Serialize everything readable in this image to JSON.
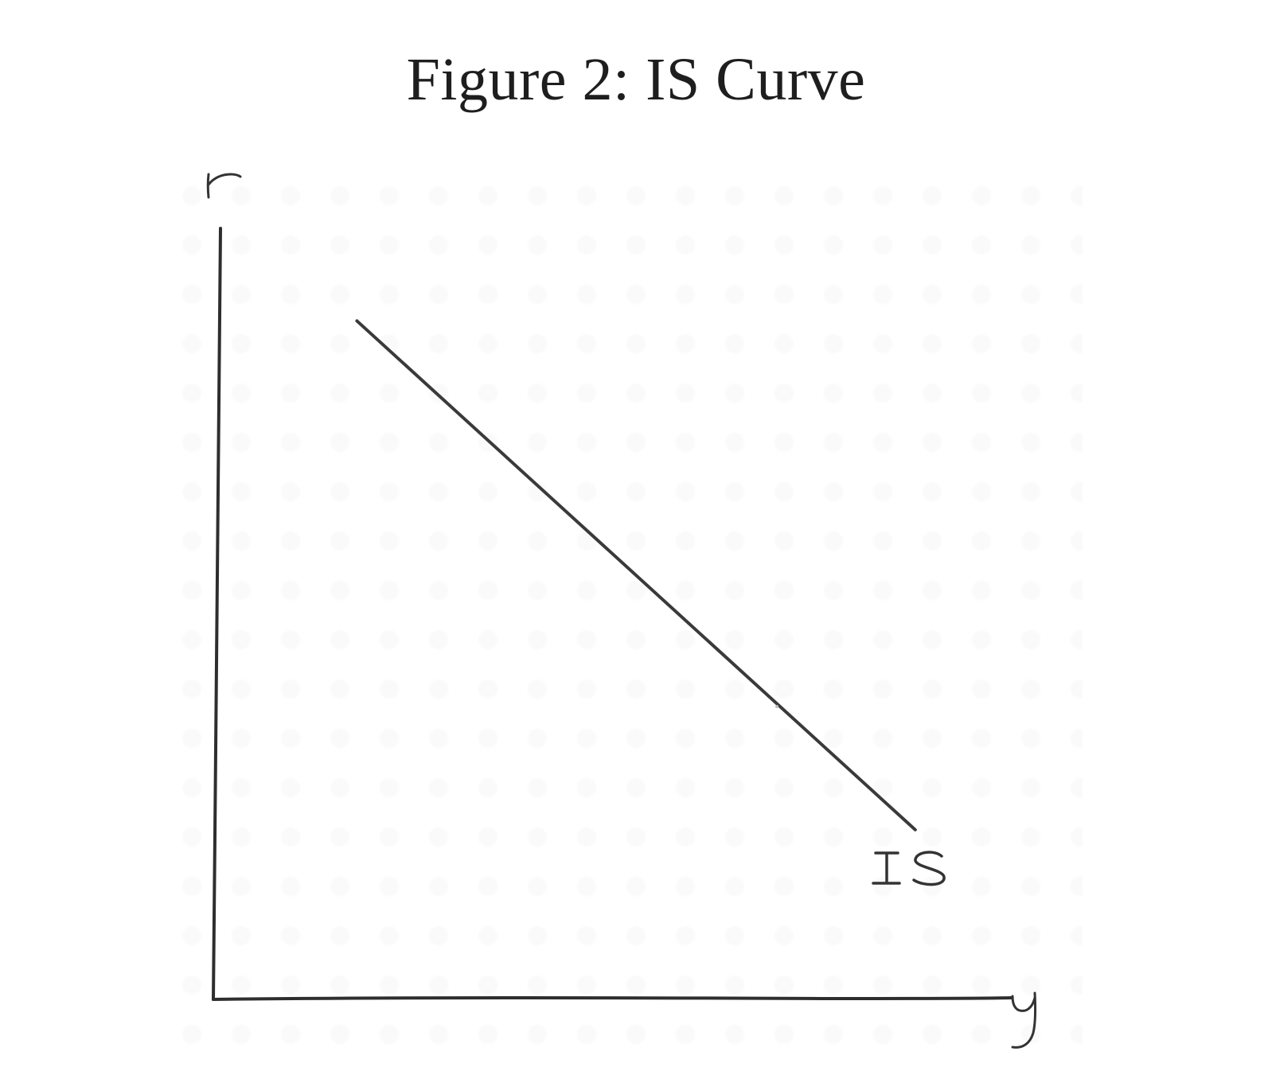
{
  "title": "Figure 2: IS Curve",
  "chart_data": {
    "type": "line",
    "title": "Figure 2: IS Curve",
    "xlabel": "y",
    "ylabel": "r",
    "xlim": [
      0,
      100
    ],
    "ylim": [
      0,
      100
    ],
    "grid": false,
    "series": [
      {
        "name": "IS",
        "x": [
          18,
          88
        ],
        "y": [
          88,
          22
        ],
        "color": "#3a3a3a"
      }
    ],
    "annotations": [
      {
        "text": "IS",
        "x": 92,
        "y": 16
      }
    ]
  }
}
